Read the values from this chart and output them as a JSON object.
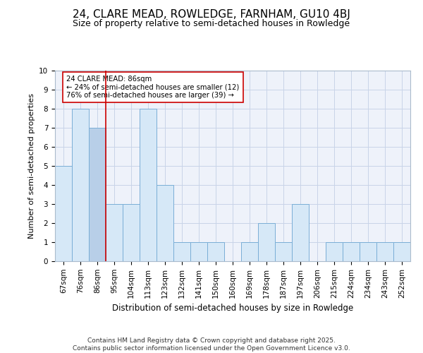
{
  "title": "24, CLARE MEAD, ROWLEDGE, FARNHAM, GU10 4BJ",
  "subtitle": "Size of property relative to semi-detached houses in Rowledge",
  "xlabel": "Distribution of semi-detached houses by size in Rowledge",
  "ylabel": "Number of semi-detached properties",
  "categories": [
    "67sqm",
    "76sqm",
    "86sqm",
    "95sqm",
    "104sqm",
    "113sqm",
    "123sqm",
    "132sqm",
    "141sqm",
    "150sqm",
    "160sqm",
    "169sqm",
    "178sqm",
    "187sqm",
    "197sqm",
    "206sqm",
    "215sqm",
    "224sqm",
    "234sqm",
    "243sqm",
    "252sqm"
  ],
  "values": [
    5,
    8,
    7,
    3,
    3,
    8,
    4,
    1,
    1,
    1,
    0,
    1,
    2,
    1,
    3,
    0,
    1,
    1,
    1,
    1,
    1
  ],
  "highlight_index": 2,
  "highlight_color": "#b8cfe8",
  "bar_color": "#d6e8f7",
  "bar_edge_color": "#7aaed6",
  "highlight_line_color": "#cc0000",
  "annotation_text": "24 CLARE MEAD: 86sqm\n← 24% of semi-detached houses are smaller (12)\n76% of semi-detached houses are larger (39) →",
  "footer": "Contains HM Land Registry data © Crown copyright and database right 2025.\nContains public sector information licensed under the Open Government Licence v3.0.",
  "ylim": [
    0,
    10
  ],
  "yticks": [
    0,
    1,
    2,
    3,
    4,
    5,
    6,
    7,
    8,
    9,
    10
  ],
  "bg_color": "#eef2fa",
  "grid_color": "#c8d4e8",
  "title_fontsize": 11,
  "subtitle_fontsize": 9,
  "tick_fontsize": 7.5,
  "footer_fontsize": 6.5
}
